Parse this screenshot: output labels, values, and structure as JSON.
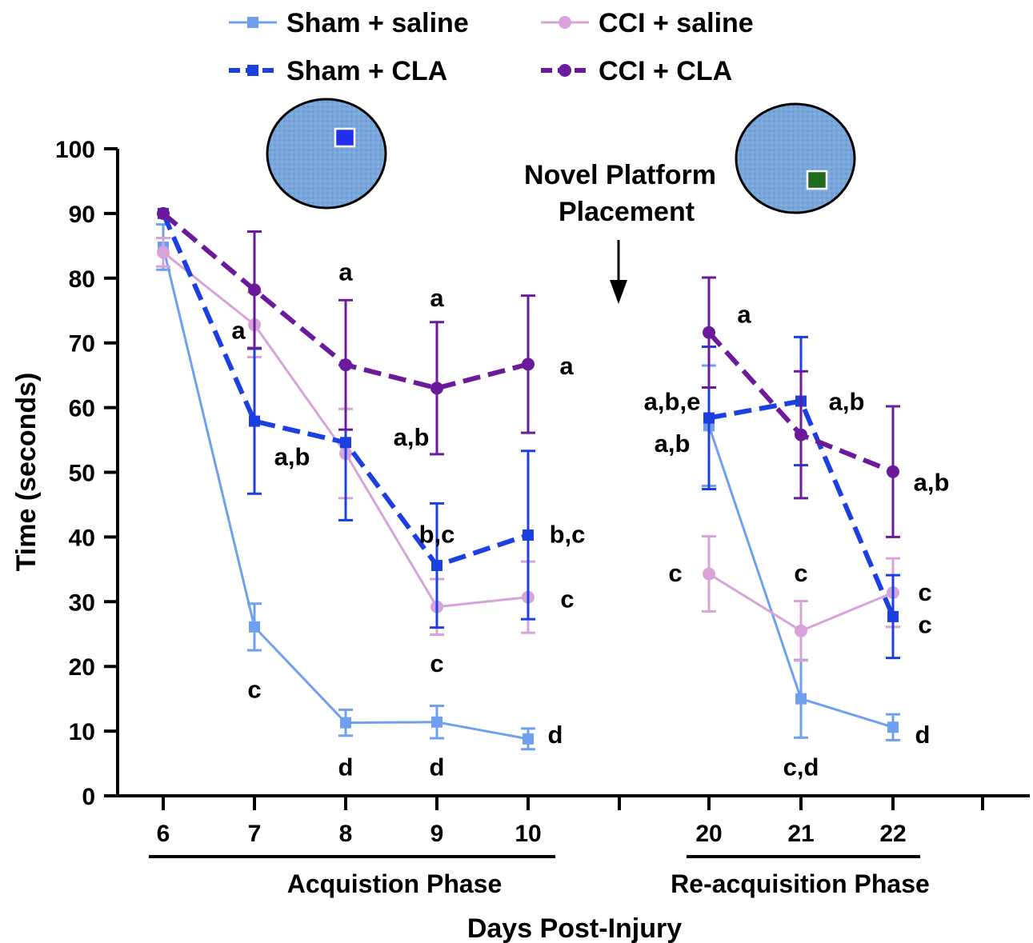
{
  "legend": [
    {
      "label": "Sham + saline",
      "color": "#6fa0ef",
      "marker": "square",
      "dash": "solid",
      "width": "thin"
    },
    {
      "label": "CCI + saline",
      "color": "#d7a3d8",
      "marker": "circle",
      "dash": "solid",
      "width": "thin"
    },
    {
      "label": "Sham + CLA",
      "color": "#1c3fe0",
      "marker": "square",
      "dash": "dashed",
      "width": "thick"
    },
    {
      "label": "CCI + CLA",
      "color": "#6a1a9a",
      "marker": "circle",
      "dash": "dashed",
      "width": "thick"
    }
  ],
  "annotation_text": [
    "Novel Platform",
    "Placement"
  ],
  "pool_icons": [
    {
      "name": "pool-icon-acquisition",
      "platform_color": "#2230ee"
    },
    {
      "name": "pool-icon-reacquisition",
      "platform_color": "#1f6b1f"
    }
  ],
  "chart_data": {
    "type": "line",
    "ylabel": "Time (seconds)",
    "xlabel": "Days Post-Injury",
    "ylim": [
      0,
      100
    ],
    "yticks": [
      0,
      10,
      20,
      30,
      40,
      50,
      60,
      70,
      80,
      90,
      100
    ],
    "grid": false,
    "legend_position": "top",
    "phases": [
      {
        "label": "Acquistion Phase",
        "days": [
          "6",
          "7",
          "8",
          "9",
          "10"
        ]
      },
      {
        "label": "Re-acquisition Phase",
        "days": [
          "20",
          "21",
          "22"
        ]
      }
    ],
    "series": [
      {
        "name": "Sham + saline",
        "x": [
          "6",
          "7",
          "8",
          "9",
          "10",
          "20",
          "21",
          "22"
        ],
        "y": [
          84.8,
          26.1,
          11.3,
          11.4,
          8.8,
          57.2,
          15.0,
          10.6
        ],
        "err": [
          3.5,
          3.6,
          2.0,
          2.5,
          1.6,
          9.3,
          6.0,
          2.0
        ]
      },
      {
        "name": "CCI + saline",
        "x": [
          "6",
          "7",
          "8",
          "9",
          "10",
          "20",
          "21",
          "22"
        ],
        "y": [
          84.0,
          72.8,
          52.9,
          29.2,
          30.7,
          34.3,
          25.5,
          31.4
        ],
        "err": [
          2.2,
          5.0,
          6.9,
          4.3,
          5.5,
          5.8,
          4.6,
          5.3
        ]
      },
      {
        "name": "Sham + CLA",
        "x": [
          "6",
          "7",
          "8",
          "9",
          "10",
          "20",
          "21",
          "22"
        ],
        "y": [
          90.0,
          57.9,
          54.6,
          35.6,
          40.3,
          58.4,
          61.0,
          27.7
        ],
        "err": [
          0.0,
          11.2,
          12.0,
          9.6,
          13.0,
          11.0,
          9.9,
          6.4
        ]
      },
      {
        "name": "CCI + CLA",
        "x": [
          "6",
          "7",
          "8",
          "9",
          "10",
          "20",
          "21",
          "22"
        ],
        "y": [
          90.0,
          78.2,
          66.6,
          63.0,
          66.7,
          71.6,
          55.8,
          50.1
        ],
        "err": [
          0.0,
          9.0,
          10.0,
          10.2,
          10.6,
          8.5,
          9.8,
          10.1
        ]
      }
    ],
    "significance_labels": [
      {
        "x": "7",
        "y": 72.0,
        "text": "a"
      },
      {
        "x": "7",
        "y": 52.5,
        "text": "a,b"
      },
      {
        "x": "7",
        "y": 16.5,
        "text": "c"
      },
      {
        "x": "8",
        "y": 81.0,
        "text": "a"
      },
      {
        "x": "8",
        "y": 55.5,
        "text": "a,b"
      },
      {
        "x": "8",
        "y": 4.5,
        "text": "d"
      },
      {
        "x": "9",
        "y": 77.0,
        "text": "a"
      },
      {
        "x": "9",
        "y": 40.5,
        "text": "b,c"
      },
      {
        "x": "9",
        "y": 20.5,
        "text": "c"
      },
      {
        "x": "9",
        "y": 4.5,
        "text": "d"
      },
      {
        "x": "10",
        "y": 66.5,
        "text": "a"
      },
      {
        "x": "10",
        "y": 40.5,
        "text": "b,c"
      },
      {
        "x": "10",
        "y": 30.5,
        "text": "c"
      },
      {
        "x": "10",
        "y": 9.5,
        "text": "d"
      },
      {
        "x": "20",
        "y": 74.5,
        "text": "a"
      },
      {
        "x": "20",
        "y": 61.0,
        "text": "a,b,e"
      },
      {
        "x": "20",
        "y": 54.5,
        "text": "a,b"
      },
      {
        "x": "20",
        "y": 34.5,
        "text": "c"
      },
      {
        "x": "21",
        "y": 61.0,
        "text": "a,b"
      },
      {
        "x": "21",
        "y": 34.5,
        "text": "c"
      },
      {
        "x": "21",
        "y": 4.5,
        "text": "c,d"
      },
      {
        "x": "22",
        "y": 48.5,
        "text": "a,b"
      },
      {
        "x": "22",
        "y": 31.5,
        "text": "c"
      },
      {
        "x": "22",
        "y": 26.5,
        "text": "c"
      },
      {
        "x": "22",
        "y": 9.5,
        "text": "d"
      }
    ]
  }
}
